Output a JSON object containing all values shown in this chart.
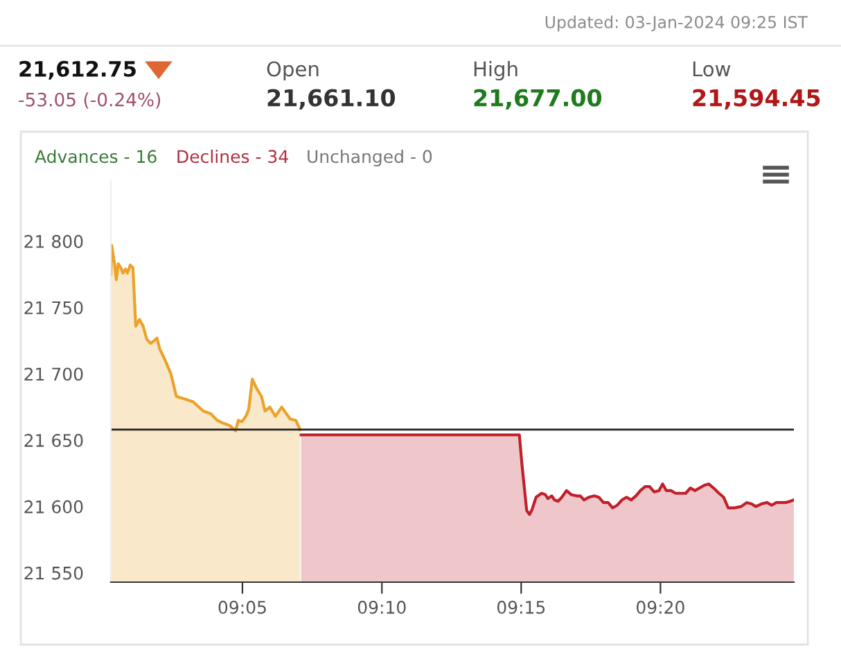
{
  "chart_data": {
    "type": "area",
    "annotations": [
      "Updated: 03-Jan-2024 09:25 IST",
      "21,612.75",
      "-53.05 (-0.24%)",
      "Open",
      "21,661.10",
      "High",
      "21,677.00",
      "Low",
      "21,594.45",
      "Advances - 16",
      "Declines - 34",
      "Unchanged - 0"
    ],
    "series": [
      {
        "color": "#eba22a",
        "x": [
          9.0046,
          9.0051,
          9.0068,
          9.0079,
          9.009,
          9.0106,
          9.0118,
          9.0134,
          9.0145,
          9.0162,
          9.0178,
          9.0195,
          9.0217,
          9.0239,
          9.0261,
          9.0283,
          9.0305,
          9.0322,
          9.0338,
          9.0372,
          9.0405,
          9.0438,
          9.0488,
          9.0538,
          9.0572,
          9.0598,
          9.0643,
          9.0682,
          9.0715,
          9.0758,
          9.0792,
          9.0808,
          9.083,
          9.0853,
          9.087,
          9.0892,
          9.0918,
          9.0947,
          9.0968,
          9.0997,
          9.103,
          9.1052,
          9.1068,
          9.109,
          9.1118,
          9.1152,
          9.1178
        ],
        "values": [
          21775,
          21797,
          21783,
          21771,
          21783,
          21780,
          21776,
          21779,
          21776,
          21782,
          21780,
          21736,
          21741,
          21736,
          21726,
          21723,
          21725,
          21727,
          21719,
          21710,
          21700,
          21683,
          21681,
          21679,
          21675,
          21672,
          21670,
          21665,
          21663,
          21661,
          21657,
          21665,
          21664,
          21668,
          21673,
          21696,
          21689,
          21683,
          21672,
          21675,
          21668,
          21672,
          21675,
          21671,
          21666,
          21665,
          21658
        ]
      },
      {
        "color": "#c0202a",
        "x": [
          9.1184,
          9.2489,
          9.2506,
          9.2533,
          9.255,
          9.2566,
          9.2589,
          9.2622,
          9.2644,
          9.266,
          9.2683,
          9.2699,
          9.2721,
          9.2743,
          9.2771,
          9.2799,
          9.2832,
          9.2854,
          9.2876,
          9.2904,
          9.2937,
          9.2964,
          9.2992,
          9.302,
          9.3047,
          9.3075,
          9.3103,
          9.313,
          9.3158,
          9.3186,
          9.3213,
          9.3241,
          9.3268,
          9.3296,
          9.3324,
          9.3346,
          9.3368,
          9.3396,
          9.3423,
          9.3451,
          9.3484,
          9.3512,
          9.3539,
          9.3567,
          9.3595,
          9.3622,
          9.365,
          9.3683,
          9.3711,
          9.3738,
          9.3777,
          9.3816,
          9.3849,
          9.3877,
          9.3904,
          9.3937,
          9.3971,
          9.3998,
          9.4026,
          9.4059,
          9.4081,
          9.4109,
          9.4131
        ],
        "values": [
          21654,
          21654,
          21630,
          21597,
          21594,
          21598,
          21607,
          21610,
          21609,
          21606,
          21608,
          21605,
          21604,
          21607,
          21612,
          21609,
          21608,
          21608,
          21605,
          21607,
          21608,
          21607,
          21603,
          21603,
          21599,
          21601,
          21605,
          21607,
          21605,
          21608,
          21612,
          21615,
          21615,
          21611,
          21612,
          21617,
          21612,
          21612,
          21610,
          21610,
          21610,
          21614,
          21612,
          21614,
          21616,
          21617,
          21614,
          21610,
          21607,
          21599,
          21599,
          21600,
          21603,
          21602,
          21600,
          21602,
          21603,
          21601,
          21603,
          21603,
          21603,
          21604,
          21605
        ]
      }
    ],
    "xlim": [
      9.0046,
      9.4131
    ],
    "xticks": [
      {
        "value": 9.0833,
        "label": "09:05"
      },
      {
        "value": 9.1667,
        "label": "09:10"
      },
      {
        "value": 9.25,
        "label": "09:15"
      },
      {
        "value": 9.3333,
        "label": "09:20"
      }
    ],
    "ylim": [
      21543,
      21846
    ],
    "yticks": [
      {
        "value": 21550,
        "label": "21 550"
      },
      {
        "value": 21600,
        "label": "21 600"
      },
      {
        "value": 21650,
        "label": "21 650"
      },
      {
        "value": 21700,
        "label": "21 700"
      },
      {
        "value": 21750,
        "label": "21 750"
      },
      {
        "value": 21800,
        "label": "21 800"
      }
    ],
    "ref_lines": [
      {
        "axis": "y",
        "value": 21658,
        "color": "#222222"
      }
    ],
    "grid": false,
    "legend": false
  }
}
